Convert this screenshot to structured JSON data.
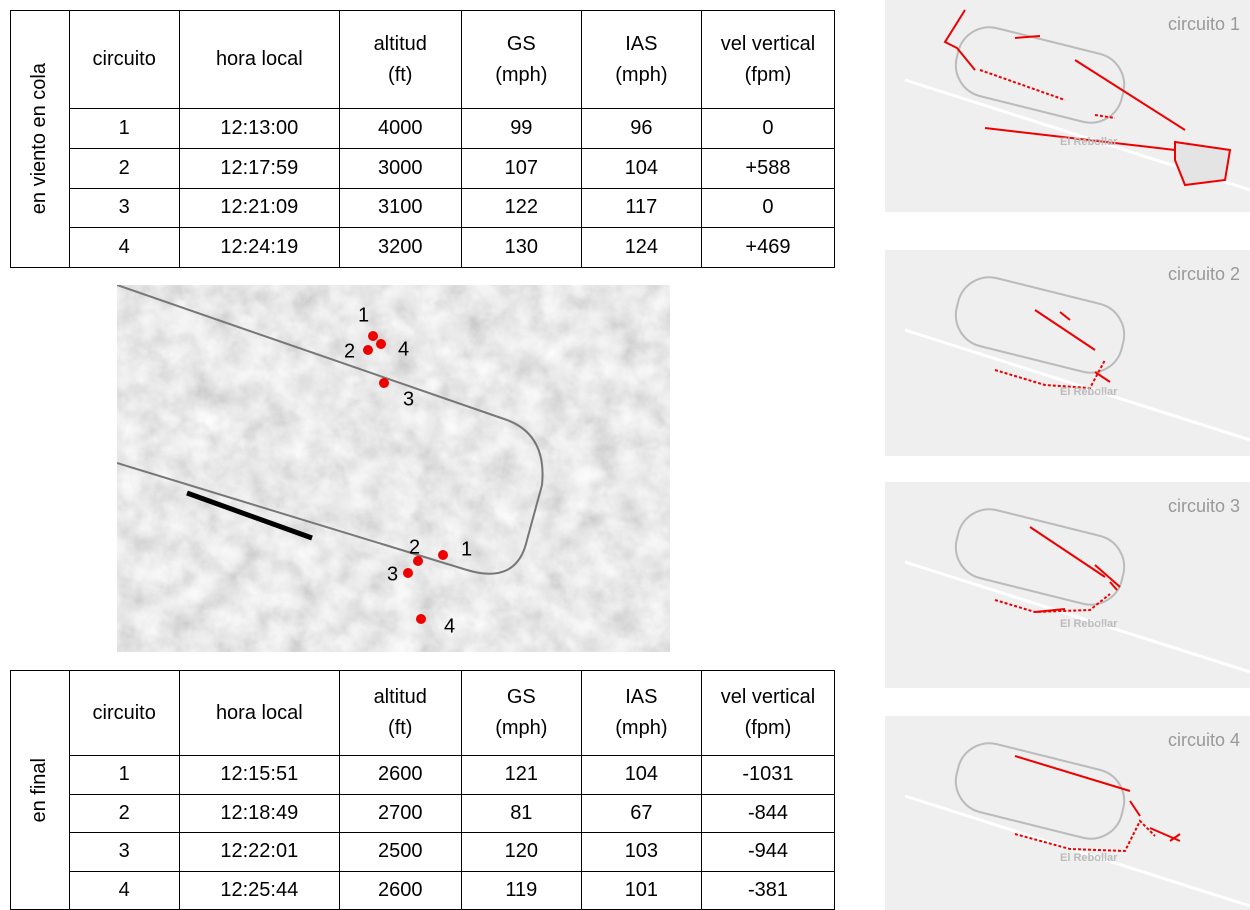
{
  "table_top": {
    "side_label": "en viento en cola",
    "headers": [
      [
        "circuito"
      ],
      [
        "hora local"
      ],
      [
        "altitud",
        "(ft)"
      ],
      [
        "GS",
        "(mph)"
      ],
      [
        "IAS",
        "(mph)"
      ],
      [
        "vel vertical",
        "(fpm)"
      ]
    ],
    "rows": [
      [
        1,
        "12:13:00",
        4000,
        99,
        96,
        0
      ],
      [
        2,
        "12:17:59",
        3000,
        107,
        104,
        "+588"
      ],
      [
        3,
        "12:21:09",
        3100,
        122,
        117,
        0
      ],
      [
        4,
        "12:24:19",
        3200,
        130,
        124,
        "+469"
      ]
    ]
  },
  "map": {
    "upper_points": [
      "1",
      "2",
      "4",
      "3"
    ],
    "lower_points": [
      "1",
      "2",
      "3",
      "4"
    ]
  },
  "table_bottom": {
    "side_label": "en final",
    "headers": [
      [
        "circuito"
      ],
      [
        "hora local"
      ],
      [
        "altitud",
        "(ft)"
      ],
      [
        "GS",
        "(mph)"
      ],
      [
        "IAS",
        "(mph)"
      ],
      [
        "vel vertical",
        "(fpm)"
      ]
    ],
    "rows": [
      [
        1,
        "12:15:51",
        2600,
        121,
        104,
        -1031
      ],
      [
        2,
        "12:18:49",
        2700,
        81,
        67,
        -844
      ],
      [
        3,
        "12:22:01",
        2500,
        120,
        103,
        -944
      ],
      [
        4,
        "12:25:44",
        2600,
        119,
        101,
        -381
      ]
    ]
  },
  "panels": [
    {
      "title": "circuito 1",
      "place": "El Rebollar"
    },
    {
      "title": "circuito 2",
      "place": "El Rebollar"
    },
    {
      "title": "circuito 3",
      "place": "El Rebollar"
    },
    {
      "title": "circuito 4",
      "place": "El Rebollar"
    }
  ]
}
